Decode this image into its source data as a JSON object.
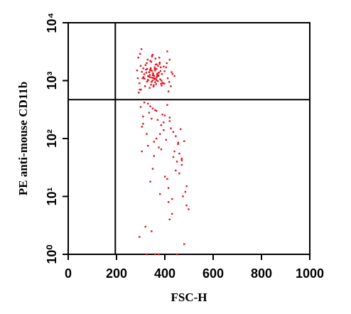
{
  "chart_data": {
    "type": "scatter",
    "x_label": "FSC-H",
    "y_label": "PE anti-mouse CD11b",
    "xlim": [
      0,
      1000
    ],
    "xticks": [
      0,
      200,
      400,
      600,
      800,
      1000
    ],
    "ylim": [
      1,
      10000
    ],
    "y_log": true,
    "yticks": [
      {
        "value": 1,
        "label": "10⁰"
      },
      {
        "value": 10,
        "label": "10¹"
      },
      {
        "value": 100,
        "label": "10²"
      },
      {
        "value": 1000,
        "label": "10³"
      },
      {
        "value": 10000,
        "label": "10⁴"
      }
    ],
    "quadrant_lines": {
      "x": 195,
      "y": 470
    },
    "series": [
      {
        "color": "#e0141e",
        "x": [
          330,
          345,
          360,
          372,
          318,
          355,
          340,
          388,
          301,
          366,
          349,
          335,
          377,
          392,
          312,
          358,
          343,
          368,
          325,
          381,
          351,
          337,
          362,
          399,
          308,
          347,
          371,
          322,
          356,
          384,
          341,
          365,
          329,
          376,
          353,
          338,
          395,
          316,
          360,
          344,
          370,
          327,
          386,
          350,
          333,
          364,
          305,
          378,
          348,
          339,
          357,
          374,
          320,
          390,
          346,
          361,
          331,
          369,
          354,
          383,
          315,
          342,
          367,
          326,
          379,
          352,
          336,
          398,
          311,
          363,
          347,
          373,
          323,
          387,
          359,
          340,
          366,
          330,
          382,
          350,
          410,
          295,
          420,
          288,
          405,
          415,
          298,
          425,
          285,
          432,
          292,
          408,
          300,
          418,
          303,
          412,
          296,
          428,
          290,
          440,
          300,
          420,
          380,
          455,
          330,
          470,
          400,
          350,
          490,
          310,
          440,
          365,
          415,
          480,
          325,
          395,
          460,
          345,
          430,
          375,
          305,
          485,
          410,
          355,
          445,
          320,
          470,
          390,
          340,
          425,
          498,
          315,
          405,
          360,
          450,
          335,
          475,
          385,
          295,
          435,
          370,
          410,
          460,
          350,
          420,
          330,
          480,
          395,
          445,
          365,
          310,
          430,
          385,
          470,
          340,
          415,
          455,
          375,
          325,
          400,
          490,
          360,
          435,
          345,
          465,
          305,
          420,
          380,
          450,
          355
        ],
        "values": [
          1200,
          950,
          1500,
          1800,
          800,
          1100,
          2200,
          1300,
          700,
          1600,
          1000,
          1400,
          2500,
          900,
          1150,
          1700,
          850,
          1250,
          2000,
          1050,
          1350,
          750,
          1900,
          1450,
          1100,
          2600,
          980,
          1550,
          1200,
          880,
          1650,
          1020,
          2300,
          1380,
          790,
          1250,
          1750,
          1080,
          940,
          2100,
          1300,
          1600,
          1000,
          2800,
          1180,
          870,
          1420,
          1950,
          1120,
          1520,
          1060,
          1230,
          1850,
          920,
          1480,
          2400,
          1010,
          1330,
          830,
          1700,
          1290,
          1560,
          1160,
          960,
          2050,
          1270,
          1400,
          890,
          1630,
          1090,
          2700,
          1210,
          1370,
          820,
          1590,
          1140,
          1910,
          1030,
          1460,
          1240,
          3200,
          900,
          2300,
          1100,
          1700,
          650,
          2900,
          800,
          1500,
          1300,
          620,
          2000,
          1800,
          950,
          3500,
          1100,
          700,
          1400,
          2500,
          1200,
          350,
          200,
          120,
          80,
          400,
          45,
          250,
          30,
          15,
          180,
          60,
          300,
          8,
          90,
          1,
          140,
          25,
          220,
          5,
          70,
          160,
          12,
          380,
          50,
          110,
          3,
          35,
          260,
          18,
          150,
          6,
          420,
          95,
          1,
          40,
          280,
          10,
          65,
          2,
          130,
          210,
          20,
          55,
          330,
          4,
          75,
          1.5,
          190,
          28,
          100,
          240,
          9,
          170,
          42,
          360,
          14,
          85,
          1,
          120,
          22,
          7,
          310,
          48,
          2.5,
          145,
          60,
          230,
          11,
          1,
          88
        ]
      }
    ]
  }
}
